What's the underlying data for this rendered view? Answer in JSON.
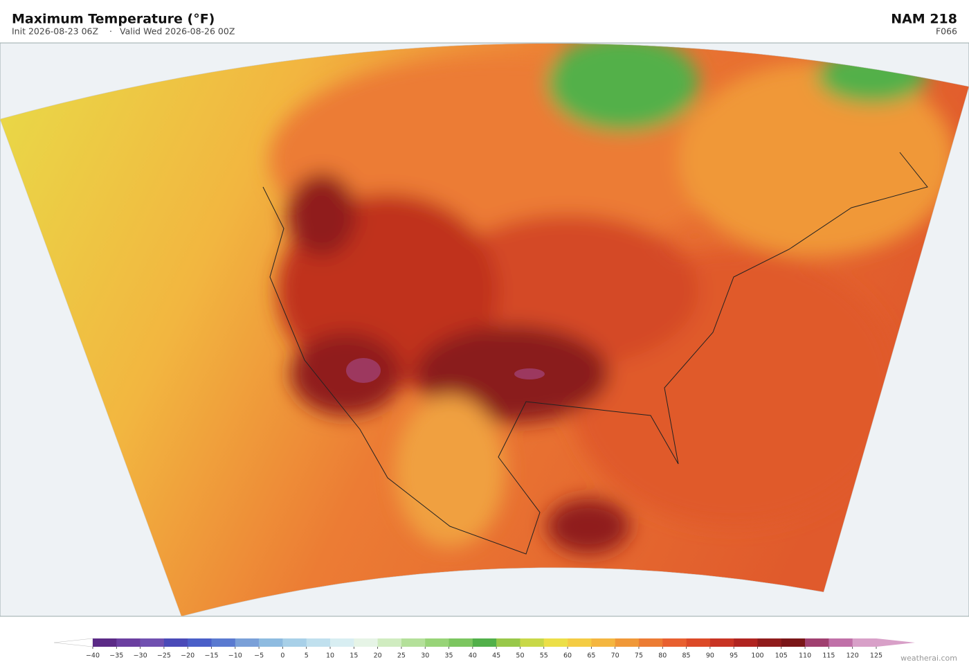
{
  "header": {
    "title": "Maximum Temperature  (°F)",
    "init": "Init 2026-08-23 06Z",
    "separator": "·",
    "valid": "Valid Wed 2026-08-26 00Z",
    "model": "NAM  218",
    "forecast_hour": "F066"
  },
  "colorbar": {
    "ticks": [
      {
        "value": -40,
        "label": "−40"
      },
      {
        "value": -35,
        "label": "−35"
      },
      {
        "value": -30,
        "label": "−30"
      },
      {
        "value": -25,
        "label": "−25"
      },
      {
        "value": -20,
        "label": "−20"
      },
      {
        "value": -15,
        "label": "−15"
      },
      {
        "value": -10,
        "label": "−10"
      },
      {
        "value": -5,
        "label": "−5"
      },
      0,
      5,
      10,
      15,
      20,
      25,
      30,
      35,
      40,
      45,
      50,
      55,
      60,
      65,
      70,
      75,
      80,
      85,
      90,
      95,
      100,
      105,
      110,
      115,
      120,
      125
    ],
    "colors": [
      "#5b2a86",
      "#6b3fa0",
      "#7050b0",
      "#4a4ab8",
      "#4a5fc8",
      "#5a7ad0",
      "#7aa0d8",
      "#8ebbe0",
      "#a8d0e8",
      "#c0e0ee",
      "#d8eef2",
      "#e6f4e6",
      "#d0ecc0",
      "#b4e09a",
      "#98d478",
      "#7cc660",
      "#52b04a",
      "#98c84a",
      "#c8d848",
      "#ecdf48",
      "#f4cc44",
      "#f4b640",
      "#f09838",
      "#ec7c34",
      "#e86030",
      "#dc4a28",
      "#c83424",
      "#b02420",
      "#901c1c",
      "#7a1618",
      "#a04070",
      "#c070a8",
      "#d8a0c8"
    ],
    "under_color": "#ffffff",
    "over_color": "#d8a0c8"
  },
  "footer": {
    "credit": "weatherai.com"
  }
}
